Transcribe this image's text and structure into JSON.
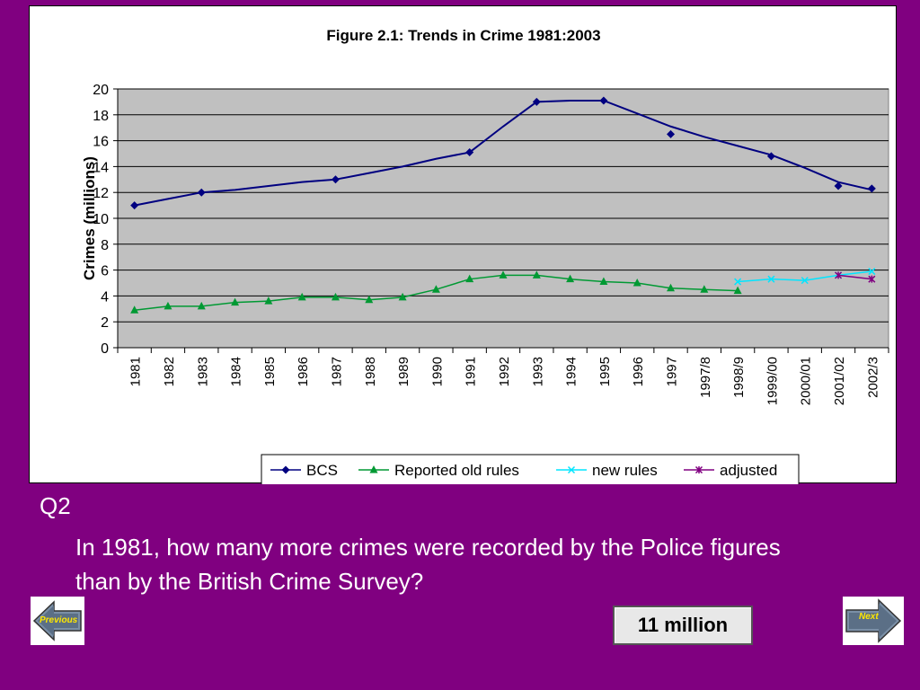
{
  "chart_data": {
    "type": "line",
    "title": "Figure 2.1: Trends in Crime 1981:2003",
    "ylabel": "Crimes (millions)",
    "xlabel": "",
    "ylim": [
      0,
      20
    ],
    "yticks": [
      0,
      2,
      4,
      6,
      8,
      10,
      12,
      14,
      16,
      18,
      20
    ],
    "grid": true,
    "legend_position": "bottom",
    "categories": [
      "1981",
      "1982",
      "1983",
      "1984",
      "1985",
      "1986",
      "1987",
      "1988",
      "1989",
      "1990",
      "1991",
      "1992",
      "1993",
      "1994",
      "1995",
      "1996",
      "1997",
      "1997/8",
      "1998/9",
      "1999/00",
      "2000/01",
      "2001/02",
      "2002/3"
    ],
    "series": [
      {
        "name": "BCS",
        "color": "#000080",
        "marker": "diamond",
        "line_values": [
          11.0,
          11.5,
          12.0,
          12.2,
          12.5,
          12.8,
          13.0,
          13.5,
          14.0,
          14.6,
          15.1,
          17.1,
          19.0,
          19.1,
          19.1,
          18.1,
          17.1,
          16.3,
          15.6,
          14.9,
          13.9,
          12.8,
          12.2
        ],
        "point_values": [
          11.0,
          null,
          12.0,
          null,
          null,
          null,
          13.0,
          null,
          null,
          null,
          15.1,
          null,
          19.0,
          null,
          19.1,
          null,
          16.5,
          null,
          null,
          14.8,
          null,
          12.5,
          12.3
        ]
      },
      {
        "name": "Reported old rules",
        "color": "#009933",
        "marker": "triangle",
        "values": [
          2.9,
          3.2,
          3.2,
          3.5,
          3.6,
          3.9,
          3.9,
          3.7,
          3.9,
          4.5,
          5.3,
          5.6,
          5.6,
          5.3,
          5.1,
          5.0,
          4.6,
          4.5,
          4.4,
          null,
          null,
          null,
          null
        ]
      },
      {
        "name": "new rules",
        "color": "#00e5ff",
        "marker": "x",
        "values": [
          null,
          null,
          null,
          null,
          null,
          null,
          null,
          null,
          null,
          null,
          null,
          null,
          null,
          null,
          null,
          null,
          null,
          null,
          5.1,
          5.3,
          5.2,
          5.6,
          5.9
        ]
      },
      {
        "name": "adjusted",
        "color": "#800080",
        "marker": "star",
        "values": [
          null,
          null,
          null,
          null,
          null,
          null,
          null,
          null,
          null,
          null,
          null,
          null,
          null,
          null,
          null,
          null,
          null,
          null,
          null,
          null,
          null,
          5.6,
          5.3
        ]
      }
    ]
  },
  "question": {
    "number": "Q2",
    "text": "In 1981, how many more crimes were recorded by the Police figures than by the British Crime Survey?"
  },
  "answer": {
    "label": "11 million"
  },
  "nav": {
    "prev_label": "Previous",
    "next_label": "Next"
  }
}
